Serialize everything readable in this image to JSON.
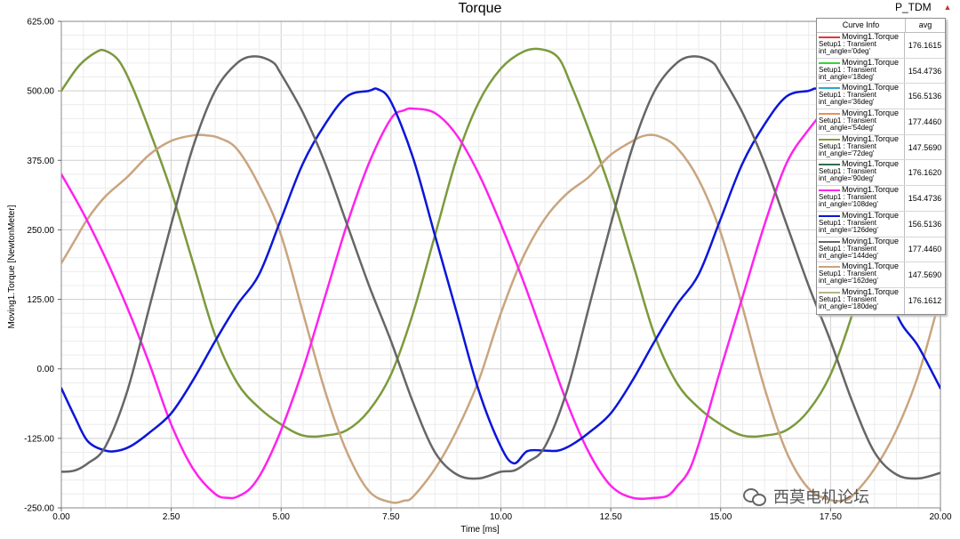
{
  "header": {
    "title": "Torque",
    "tag": "P_TDM",
    "tag_arrow": "▲"
  },
  "legend": {
    "col1": "Curve Info",
    "col2": "avg",
    "rows": [
      {
        "l1": "Moving1.Torque",
        "l2": "Setup1 : Transient",
        "l3": "int_angle='0deg'",
        "avg": "176.1615",
        "color": "#e8343a"
      },
      {
        "l1": "Moving1.Torque",
        "l2": "Setup1 : Transient",
        "l3": "int_angle='18deg'",
        "avg": "154.4736",
        "color": "#33d633"
      },
      {
        "l1": "Moving1.Torque",
        "l2": "Setup1 : Transient",
        "l3": "int_angle='36deg'",
        "avg": "156.5136",
        "color": "#2aa9c9"
      },
      {
        "l1": "Moving1.Torque",
        "l2": "Setup1 : Transient",
        "l3": "int_angle='54deg'",
        "avg": "177.4460",
        "color": "#e89058"
      },
      {
        "l1": "Moving1.Torque",
        "l2": "Setup1 : Transient",
        "l3": "int_angle='72deg'",
        "avg": "147.5690",
        "color": "#8a9a3a"
      },
      {
        "l1": "Moving1.Torque",
        "l2": "Setup1 : Transient",
        "l3": "int_angle='90deg'",
        "avg": "176.1620",
        "color": "#2f6f4f"
      },
      {
        "l1": "Moving1.Torque",
        "l2": "Setup1 : Transient",
        "l3": "int_angle='108deg'",
        "avg": "154.4736",
        "color": "#ff22ee"
      },
      {
        "l1": "Moving1.Torque",
        "l2": "Setup1 : Transient",
        "l3": "int_angle='126deg'",
        "avg": "156.5136",
        "color": "#0b16d8"
      },
      {
        "l1": "Moving1.Torque",
        "l2": "Setup1 : Transient",
        "l3": "int_angle='144deg'",
        "avg": "177.4460",
        "color": "#666666"
      },
      {
        "l1": "Moving1.Torque",
        "l2": "Setup1 : Transient",
        "l3": "int_angle='162deg'",
        "avg": "147.5690",
        "color": "#c8a27e"
      },
      {
        "l1": "Moving1.Torque",
        "l2": "Setup1 : Transient",
        "l3": "int_angle='180deg'",
        "avg": "176.1612",
        "color": "#b6b48a"
      }
    ]
  },
  "watermark": {
    "text": "西莫电机论坛"
  },
  "chart_data": {
    "type": "line",
    "title": "Torque",
    "xlabel": "Time [ms]",
    "ylabel": "Moving1.Torque [NewtonMeter]",
    "xlim": [
      0,
      20
    ],
    "ylim": [
      -250,
      625
    ],
    "xticks": [
      "0.00",
      "2.50",
      "5.00",
      "7.50",
      "10.00",
      "12.50",
      "15.00",
      "17.50",
      "20.00"
    ],
    "yticks": [
      "625.00",
      "500.00",
      "375.00",
      "250.00",
      "125.00",
      "0.00",
      "-125.00",
      "-250.00"
    ],
    "grid": true,
    "legend_position": "top-right",
    "series": [
      {
        "color": "#7c9a3c",
        "x": [
          0,
          0.4,
          0.8,
          1.0,
          1.3,
          1.6,
          2.0,
          2.5,
          3.0,
          3.5,
          4.0,
          4.5,
          5.0,
          5.5,
          6.0,
          6.5,
          7.0,
          7.5,
          8.0,
          8.5,
          9.0,
          9.5,
          10.0,
          10.5,
          10.9,
          11.3,
          11.6,
          12.0,
          12.5,
          13.0,
          13.5,
          14.0,
          14.5,
          15.0,
          15.5,
          16.0,
          16.5,
          17.0,
          17.5,
          18.0,
          18.5,
          19.0,
          19.3
        ],
        "y": [
          500,
          545,
          570,
          572,
          555,
          510,
          430,
          320,
          190,
          60,
          -25,
          -70,
          -100,
          -120,
          -120,
          -110,
          -75,
          -10,
          100,
          240,
          380,
          480,
          540,
          570,
          575,
          560,
          510,
          430,
          320,
          190,
          60,
          -25,
          -70,
          -100,
          -120,
          -120,
          -110,
          -75,
          -10,
          100,
          240,
          380,
          470
        ]
      },
      {
        "color": "#c9a57f",
        "x": [
          0,
          0.3,
          0.6,
          1.0,
          1.5,
          2.0,
          2.5,
          3.0,
          3.3,
          3.6,
          4.0,
          4.5,
          5.0,
          5.5,
          6.0,
          6.5,
          7.0,
          7.5,
          7.8,
          8.0,
          8.5,
          9.0,
          9.5,
          10.0,
          10.5,
          11.0,
          11.5,
          12.0,
          12.5,
          13.0,
          13.3,
          13.6,
          14.0,
          14.5,
          15.0,
          15.5,
          16.0,
          16.5,
          17.0,
          17.5,
          17.8,
          18.0,
          18.5,
          19.0,
          19.5,
          20.0
        ],
        "y": [
          190,
          230,
          270,
          310,
          345,
          385,
          410,
          420,
          420,
          415,
          395,
          330,
          240,
          100,
          -40,
          -150,
          -220,
          -240,
          -237,
          -230,
          -180,
          -110,
          -20,
          100,
          200,
          270,
          315,
          345,
          385,
          410,
          420,
          418,
          398,
          340,
          245,
          110,
          -35,
          -150,
          -215,
          -236,
          -236,
          -228,
          -180,
          -110,
          -10,
          130
        ]
      },
      {
        "color": "#ff22ee",
        "x": [
          0,
          0.5,
          1.0,
          1.5,
          2.0,
          2.5,
          3.0,
          3.5,
          3.8,
          4.0,
          4.3,
          4.6,
          5.0,
          5.5,
          6.0,
          6.5,
          7.0,
          7.5,
          7.8,
          8.0,
          8.5,
          9.0,
          9.5,
          10.0,
          10.5,
          11.0,
          11.5,
          12.0,
          12.5,
          13.0,
          13.5,
          13.8,
          14.0,
          14.3,
          14.6,
          15.0,
          15.5,
          16.0,
          16.5,
          17.0,
          17.5,
          17.8
        ],
        "y": [
          350,
          280,
          200,
          110,
          10,
          -100,
          -180,
          -225,
          -232,
          -230,
          -215,
          -180,
          -110,
          0,
          130,
          260,
          370,
          450,
          465,
          468,
          460,
          420,
          350,
          260,
          160,
          50,
          -60,
          -150,
          -210,
          -232,
          -232,
          -228,
          -212,
          -180,
          -110,
          0,
          130,
          260,
          370,
          430,
          475,
          480
        ]
      },
      {
        "color": "#0b16d8",
        "x": [
          0,
          0.3,
          0.6,
          1.0,
          1.3,
          1.6,
          2.0,
          2.5,
          3.0,
          3.5,
          4.0,
          4.5,
          5.0,
          5.5,
          6.0,
          6.5,
          7.0,
          7.2,
          7.5,
          8.0,
          8.5,
          9.0,
          9.5,
          10.0,
          10.3,
          10.6,
          11.0,
          11.3,
          11.6,
          12.0,
          12.5,
          13.0,
          13.5,
          14.0,
          14.5,
          15.0,
          15.5,
          16.0,
          16.5,
          17.0,
          17.2,
          17.5,
          18.0,
          18.5,
          19.0,
          19.5,
          20.0
        ],
        "y": [
          -35,
          -85,
          -130,
          -147,
          -147,
          -138,
          -115,
          -80,
          -20,
          50,
          115,
          170,
          270,
          370,
          440,
          490,
          500,
          503,
          480,
          380,
          240,
          100,
          -40,
          -140,
          -170,
          -148,
          -147,
          -147,
          -137,
          -115,
          -80,
          -20,
          50,
          115,
          170,
          270,
          370,
          440,
          490,
          500,
          503,
          480,
          380,
          240,
          100,
          40,
          -35
        ]
      },
      {
        "color": "#666666",
        "x": [
          0,
          0.3,
          0.6,
          1.0,
          1.5,
          2.0,
          2.5,
          3.0,
          3.5,
          4.0,
          4.4,
          4.8,
          5.0,
          5.5,
          6.0,
          6.5,
          7.0,
          7.5,
          8.0,
          8.5,
          9.0,
          9.5,
          10.0,
          10.3,
          10.6,
          11.0,
          11.5,
          12.0,
          12.5,
          13.0,
          13.5,
          14.0,
          14.4,
          14.8,
          15.0,
          15.5,
          16.0,
          16.5,
          17.0,
          17.5,
          18.0,
          18.5,
          19.0,
          19.5,
          20.0
        ],
        "y": [
          -185,
          -183,
          -170,
          -140,
          -40,
          110,
          260,
          400,
          500,
          550,
          562,
          552,
          530,
          460,
          370,
          260,
          150,
          50,
          -60,
          -150,
          -190,
          -197,
          -185,
          -183,
          -168,
          -140,
          -40,
          110,
          260,
          400,
          500,
          550,
          562,
          552,
          530,
          460,
          370,
          260,
          150,
          50,
          -60,
          -150,
          -190,
          -197,
          -187
        ]
      }
    ]
  }
}
